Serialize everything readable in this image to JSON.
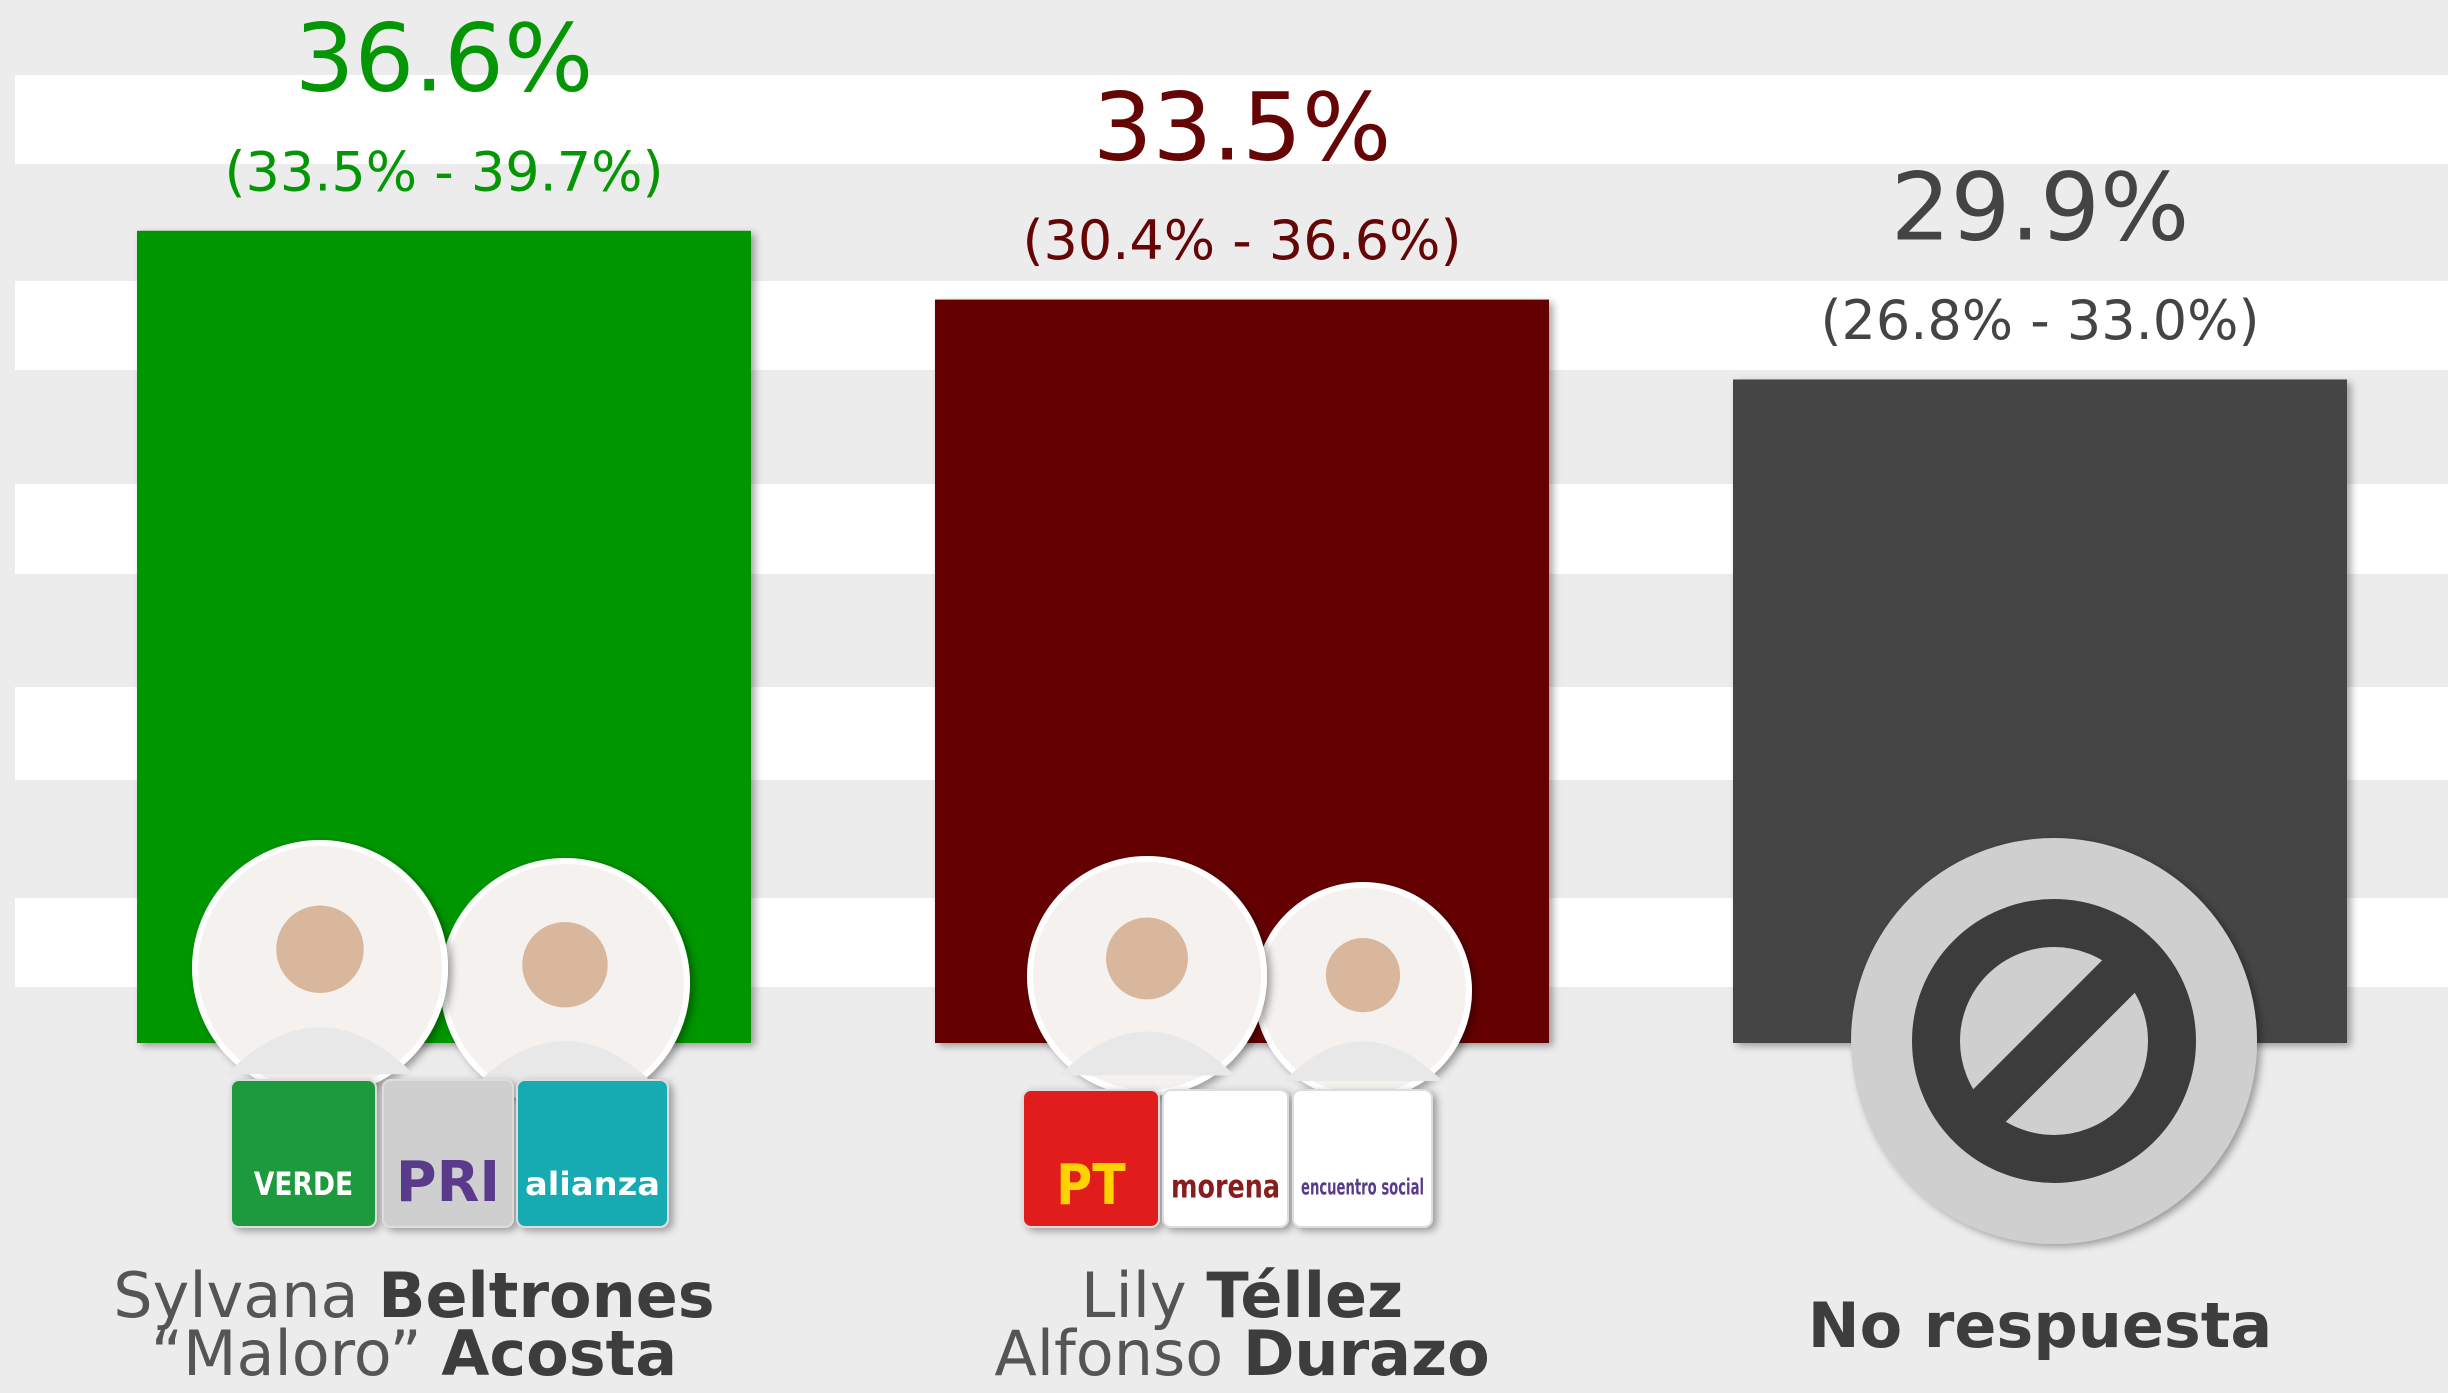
{
  "chart_data": {
    "type": "bar",
    "categories": [
      [
        [
          {
            "text": "Sylvana",
            "bold": false
          },
          {
            "text": "Beltrones",
            "bold": true
          }
        ],
        [
          {
            "text": "“Maloro”",
            "bold": false
          },
          {
            "text": "Acosta",
            "bold": true
          }
        ]
      ],
      [
        [
          {
            "text": "Lily",
            "bold": false
          },
          {
            "text": "Téllez",
            "bold": true
          }
        ],
        [
          {
            "text": "Alfonso",
            "bold": false
          },
          {
            "text": "Durazo",
            "bold": true
          }
        ]
      ],
      [
        [
          {
            "text": "No respuesta",
            "bold": true
          }
        ]
      ]
    ],
    "values": [
      36.6,
      33.5,
      29.9
    ],
    "value_labels": [
      "36.6%",
      "33.5%",
      "29.9%"
    ],
    "interval_labels": [
      "(33.5% - 39.7%)",
      "(30.4% - 36.6%)",
      "(26.8% - 33.0%)"
    ],
    "colors": [
      "#059605",
      "#650505",
      "#444444"
    ],
    "label_colors": [
      "#059605",
      "#650505",
      "#444444"
    ],
    "ylim": [
      0,
      47
    ],
    "party_logos": [
      [
        {
          "name": "VERDE",
          "color": "#1f9a3c"
        },
        {
          "name": "PRI",
          "color": "#cfcfcf"
        },
        {
          "name": "alianza",
          "color": "#17aab3"
        }
      ],
      [
        {
          "name": "PT",
          "color": "#e01b1b"
        },
        {
          "name": "morena",
          "color": "#ffffff"
        },
        {
          "name": "encuentro social",
          "color": "#ffffff"
        }
      ],
      []
    ]
  }
}
